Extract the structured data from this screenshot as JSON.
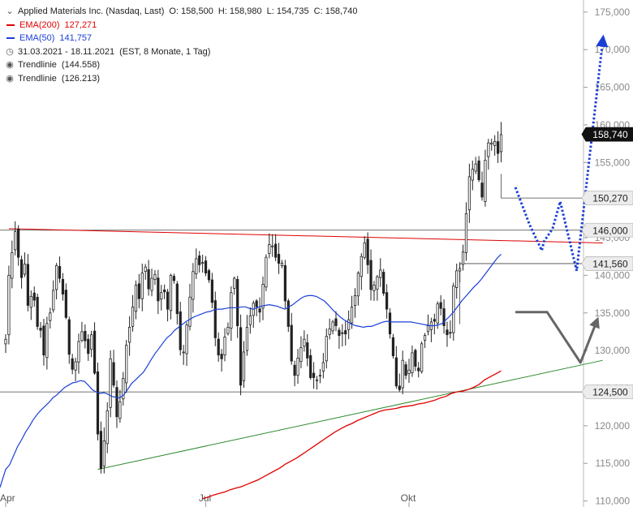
{
  "legend": {
    "title": "Applied Materials Inc. (Nasdaq, Last)",
    "ohlc": {
      "o": "O: 158,500",
      "h": "H: 158,980",
      "l": "L: 154,735",
      "c": "C: 158,740"
    },
    "ema200": {
      "label": "EMA(200)",
      "value": "127,271",
      "color": "#e00000"
    },
    "ema50": {
      "label": "EMA(50)",
      "value": "141,757",
      "color": "#1a3fd6"
    },
    "period": "31.03.2021 - 18.11.2021",
    "period_info": "(EST, 8 Monate, 1 Tag)",
    "trend1": {
      "label": "Trendlinie",
      "value": "(144.558)"
    },
    "trend2": {
      "label": "Trendlinie",
      "value": "(126.213)"
    }
  },
  "chart_data": {
    "type": "candlestick",
    "x_axis": {
      "labels": [
        {
          "label": "Apr",
          "pos": 0
        },
        {
          "label": "Jul",
          "pos": 63
        },
        {
          "label": "Okt",
          "pos": 127
        }
      ]
    },
    "y_axis": {
      "ticks": [
        110000,
        115000,
        120000,
        125000,
        130000,
        135000,
        140000,
        145000,
        150000,
        155000,
        160000,
        165000,
        170000,
        175000
      ],
      "ylim": [
        109200,
        176600
      ]
    },
    "colors": {
      "candle": "#222222",
      "ema200": "#e00000",
      "ema50": "#1a3fd6",
      "resistance": "#e00000",
      "support": "#2e8b2e",
      "level": "#444444",
      "bull_arrow": "#1a3fd6",
      "bear_arrow": "#666666"
    },
    "price_tags": [
      {
        "value": 158.74,
        "label": "158,740",
        "style": "dark"
      },
      {
        "value": 150.27,
        "label": "150,270",
        "style": "light"
      },
      {
        "value": 146.0,
        "label": "146,000",
        "style": "light"
      },
      {
        "value": 141.56,
        "label": "141,560",
        "style": "light"
      },
      {
        "value": 124.5,
        "label": "124,500",
        "style": "light"
      }
    ],
    "horizontal_levels": [
      {
        "value": 150.27,
        "from": 156
      },
      {
        "value": 146.0,
        "from": 0
      },
      {
        "value": 141.56,
        "from": 143
      },
      {
        "value": 124.5,
        "from": 0
      }
    ],
    "resistance_line": {
      "from": [
        1,
        146.2
      ],
      "to": [
        188,
        144.3
      ]
    },
    "support_line": {
      "from": [
        29,
        114.2
      ],
      "to": [
        188,
        128.7
      ]
    },
    "closes": [
      131.5,
      140,
      143,
      145.8,
      142.4,
      139.7,
      141.5,
      136,
      137.2,
      136.7,
      133.2,
      132.7,
      129.4,
      133.6,
      135,
      138,
      141.3,
      139.6,
      137.5,
      134.4,
      129.5,
      127.5,
      128.5,
      131.2,
      132.5,
      131.3,
      129.6,
      132.1,
      127,
      118.9,
      114.3,
      118,
      122,
      128.9,
      125.4,
      121.2,
      123.2,
      126.3,
      130.7,
      133.1,
      135.8,
      138.7,
      136.9,
      140.3,
      141.1,
      138.2,
      139.6,
      140.1,
      136.6,
      137.7,
      137.8,
      135.5,
      140,
      139.3,
      134.9,
      130.1,
      129.8,
      133.4,
      137.1,
      140.5,
      142.2,
      141.4,
      141.7,
      140.3,
      139.4,
      136.4,
      131.7,
      129.4,
      128.9,
      131.8,
      133.1,
      137.7,
      139.6,
      133.3,
      125.4,
      129.8,
      133.1,
      134.6,
      136.3,
      135.8,
      135.1,
      138.8,
      142.4,
      144.1,
      143.9,
      142.4,
      141.6,
      141.6,
      136.6,
      133.2,
      128.6,
      126.7,
      129,
      130.4,
      131.5,
      129,
      126.4,
      126.4,
      126.1,
      126.7,
      128.4,
      131.9,
      132.9,
      133.8,
      133.3,
      132,
      132.3,
      132.2,
      134.1,
      135.8,
      137.3,
      140.3,
      142.5,
      144.3,
      141.4,
      138.1,
      138.7,
      139.8,
      140.7,
      137.6,
      135.5,
      132.2,
      129.3,
      125.3,
      124.8,
      128.7,
      126.7,
      127.4,
      129.7,
      127.9,
      127.3,
      130.9,
      132,
      133.3,
      133.8,
      133.9,
      136.2,
      135.6,
      133.3,
      132.1,
      132.4,
      138.6,
      140.6,
      140.9,
      143.1,
      148.2,
      153.1,
      154.1,
      154.8,
      152.7,
      150.4,
      155.3,
      157.6,
      157.6,
      157.8,
      156.2,
      158.7
    ],
    "ema50": [
      114.2,
      114.8,
      116,
      117.2,
      118.1,
      119.1,
      119.9,
      120.8,
      121.5,
      122.1,
      122.6,
      123.1,
      123.7,
      124.1,
      124.6,
      125.1,
      125.4,
      125.7,
      125.8,
      126,
      125.9,
      125.4,
      124.8,
      124.5,
      124.3,
      124.4,
      124.2,
      123.9,
      123.8,
      123.7,
      124.1,
      124.8,
      125.6,
      126.1,
      126.6,
      127.1,
      127.9,
      128.8,
      129.6,
      130.3,
      131,
      131.7,
      132.1,
      132.7,
      133.1,
      133.5,
      133.9,
      134.2,
      134.5,
      134.7,
      134.9,
      135.1,
      135.2,
      135.4,
      135.5,
      135.5,
      135.6,
      135.7,
      135.7,
      135.7,
      135.8,
      135.8,
      135.6,
      135.5,
      135.7,
      135.9,
      136,
      136.1,
      136,
      135.9,
      135.7,
      135.5,
      135.8,
      136.1,
      136.5,
      136.9,
      137.2,
      137.3,
      137.3,
      137.2,
      136.9,
      136.6,
      136.1,
      135.5,
      135,
      134.5,
      134.1,
      133.8,
      133.5,
      133.3,
      133.2,
      133.1,
      133.2,
      133.2,
      133.4,
      133.6,
      133.8,
      133.9,
      133.8,
      133.8,
      133.8,
      133.8,
      133.8,
      133.8,
      133.7,
      133.6,
      133.5,
      133.4,
      133.3,
      133.3,
      133.4,
      133.6,
      134.1,
      134.6,
      135.2,
      135.9,
      136.6,
      137.2,
      137.8,
      138.4,
      138.9,
      139.5,
      140.2,
      140.9,
      141.6,
      142.3,
      142.8
    ],
    "ema200": [
      110.3,
      110.5,
      110.8,
      111,
      111.2,
      111.5,
      111.7,
      111.9,
      112.2,
      112.5,
      112.8,
      113.2,
      113.6,
      114,
      114.4,
      114.9,
      115.3,
      115.7,
      116.2,
      116.7,
      117.2,
      117.7,
      118.2,
      118.7,
      119.2,
      119.6,
      120,
      120.3,
      120.7,
      121,
      121.3,
      121.6,
      121.9,
      122.1,
      122.2,
      122.3,
      122.5,
      122.6,
      122.7,
      122.9,
      123,
      123.2,
      123.4,
      123.7,
      123.9,
      124.3,
      124.5,
      124.6,
      124.8,
      125.1,
      125.5,
      126.1,
      126.5,
      126.9,
      127.3
    ],
    "ema50_start": 0,
    "ema200_start": 62,
    "projection_bull": [
      [
        160.5,
        151.7
      ],
      [
        165,
        146.7
      ],
      [
        168.8,
        143.3
      ],
      [
        169.5,
        144.5
      ],
      [
        172.2,
        146.2
      ],
      [
        174.6,
        149.8
      ],
      [
        179.8,
        140.6
      ],
      [
        188,
        171.2
      ]
    ],
    "projection_bear": [
      [
        160.5,
        135.1
      ],
      [
        170.5,
        135.1
      ],
      [
        181,
        128.4
      ],
      [
        186,
        133.8
      ]
    ]
  }
}
